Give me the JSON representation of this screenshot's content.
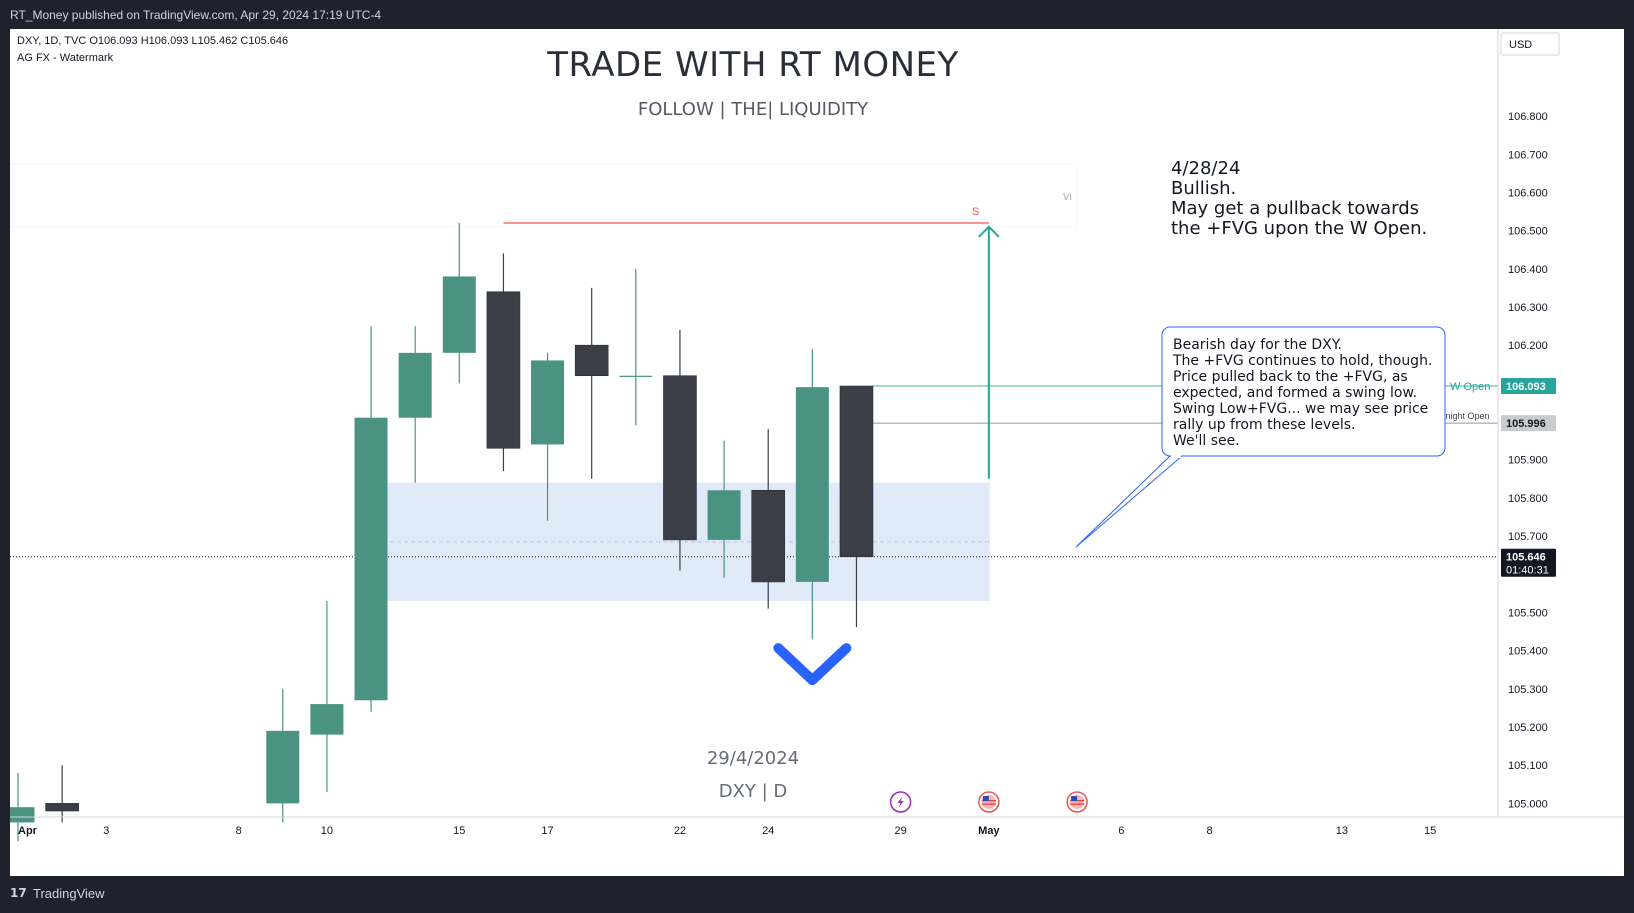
{
  "header": {
    "publish_text": "RT_Money published on TradingView.com, Apr 29, 2024 17:19 UTC-4"
  },
  "footer": {
    "logo_glyph": "17",
    "brand": "TradingView"
  },
  "colors": {
    "bull": "#4a9382",
    "bear": "#3b3d47",
    "fvg": "#dce6f7",
    "sell_line": "#f05454",
    "w_open": "#3fb49a",
    "midnight_open": "#9598a1",
    "arrow_up": "#26a69a",
    "arrow_down": "#2962ff",
    "price_tag": "#131722",
    "text": "#131722",
    "callout_border": "#2962ff"
  },
  "chart_data": {
    "type": "candlestick",
    "symbol": "DXY",
    "interval": "1D",
    "source": "TVC",
    "ohlc_label": "DXY, 1D, TVC  O106.093  H106.093  L105.462  C105.646",
    "indicator_label": "AG FX - Watermark",
    "watermark_title": "TRADE WITH RT MONEY",
    "watermark_subtitle": "FOLLOW  |  THE|  LIQUIDITY",
    "watermark_date": "29/4/2024",
    "watermark_symbol": "DXY | D",
    "currency": "USD",
    "ylim": [
      104.98,
      106.96
    ],
    "y_ticks": [
      "106.800",
      "106.700",
      "106.600",
      "106.500",
      "106.400",
      "106.300",
      "106.200",
      "105.900",
      "105.800",
      "105.700",
      "105.500",
      "105.400",
      "105.300",
      "105.200",
      "105.100",
      "105.000"
    ],
    "x_ticks": [
      {
        "day": "2024-04-01",
        "label": "Apr"
      },
      {
        "day": "2024-04-03",
        "label": "3"
      },
      {
        "day": "2024-04-08",
        "label": "8"
      },
      {
        "day": "2024-04-10",
        "label": "10"
      },
      {
        "day": "2024-04-15",
        "label": "15"
      },
      {
        "day": "2024-04-17",
        "label": "17"
      },
      {
        "day": "2024-04-22",
        "label": "22"
      },
      {
        "day": "2024-04-24",
        "label": "24"
      },
      {
        "day": "2024-04-29",
        "label": "29"
      },
      {
        "day": "2024-05-01",
        "label": "May"
      },
      {
        "day": "2024-05-06",
        "label": "6"
      },
      {
        "day": "2024-05-08",
        "label": "8"
      },
      {
        "day": "2024-05-13",
        "label": "13"
      },
      {
        "day": "2024-05-15",
        "label": "15"
      }
    ],
    "candles": [
      {
        "date": "2024-04-01",
        "open": 104.95,
        "high": 105.08,
        "low": 104.9,
        "close": 104.99
      },
      {
        "date": "2024-04-02",
        "open": 105.0,
        "high": 105.1,
        "low": 104.95,
        "close": 104.98
      },
      {
        "date": "2024-04-09",
        "open": 105.0,
        "high": 105.3,
        "low": 104.95,
        "close": 105.19
      },
      {
        "date": "2024-04-10",
        "open": 105.18,
        "high": 105.53,
        "low": 105.03,
        "close": 105.26
      },
      {
        "date": "2024-04-11",
        "open": 105.27,
        "high": 106.25,
        "low": 105.24,
        "close": 106.01
      },
      {
        "date": "2024-04-12",
        "open": 106.01,
        "high": 106.25,
        "low": 105.84,
        "close": 106.18
      },
      {
        "date": "2024-04-15",
        "open": 106.18,
        "high": 106.52,
        "low": 106.1,
        "close": 106.38
      },
      {
        "date": "2024-04-16",
        "open": 106.34,
        "high": 106.44,
        "low": 105.87,
        "close": 105.93
      },
      {
        "date": "2024-04-17",
        "open": 105.94,
        "high": 106.18,
        "low": 105.74,
        "close": 106.16
      },
      {
        "date": "2024-04-18",
        "open": 106.2,
        "high": 106.35,
        "low": 105.85,
        "close": 106.12
      },
      {
        "date": "2024-04-19",
        "open": 106.12,
        "high": 106.4,
        "low": 105.99,
        "close": 106.12
      },
      {
        "date": "2024-04-22",
        "open": 106.12,
        "high": 106.24,
        "low": 105.61,
        "close": 105.69
      },
      {
        "date": "2024-04-23",
        "open": 105.69,
        "high": 105.95,
        "low": 105.59,
        "close": 105.82
      },
      {
        "date": "2024-04-24",
        "open": 105.82,
        "high": 105.98,
        "low": 105.51,
        "close": 105.58
      },
      {
        "date": "2024-04-25",
        "open": 105.58,
        "high": 106.19,
        "low": 105.43,
        "close": 106.09
      },
      {
        "date": "2024-04-26",
        "open": 106.093,
        "high": 106.093,
        "low": 105.462,
        "close": 105.646
      }
    ],
    "fvg_zone": {
      "from": "2024-04-11",
      "to": "2024-05-01",
      "top": 105.84,
      "bottom": 105.53,
      "mid": 105.685
    },
    "sell_line": {
      "from": "2024-04-16",
      "to": "2024-05-01",
      "price": 106.52,
      "label": "S"
    },
    "upper_band": {
      "from": "2024-04-01",
      "to": "2024-05-04",
      "top": 106.675,
      "bottom": 106.51,
      "label": "VI"
    },
    "w_open": {
      "price": 106.093,
      "label": "W Open",
      "tag": "106.093"
    },
    "midnight_open": {
      "price": 105.996,
      "label": "Midnight Open",
      "tag": "105.996"
    },
    "last_price": {
      "price": 105.646,
      "tag": "105.646",
      "countdown": "01:40:31"
    },
    "arrow_up": {
      "date": "2024-05-01",
      "from": 105.85,
      "to": 106.51
    },
    "arrow_down": {
      "date": "2024-04-25",
      "price": 105.37
    },
    "event_icons": [
      {
        "date": "2024-04-29",
        "kind": "earnings-icon"
      },
      {
        "date": "2024-05-01",
        "kind": "us-flag-icon"
      },
      {
        "date": "2024-05-03",
        "kind": "us-flag-icon"
      }
    ],
    "note_main": {
      "date_text": "4/28/24",
      "lines": [
        "Bullish.",
        "May get a pullback towards",
        "the +FVG upon the W Open."
      ]
    },
    "note_callout": {
      "lines": [
        "Bearish day for the DXY.",
        "The +FVG continues to hold, though.",
        "Price pulled back to the +FVG, as",
        "expected, and formed a swing low.",
        "Swing Low+FVG... we may see price",
        "rally up from these levels.",
        "We'll see."
      ]
    }
  }
}
